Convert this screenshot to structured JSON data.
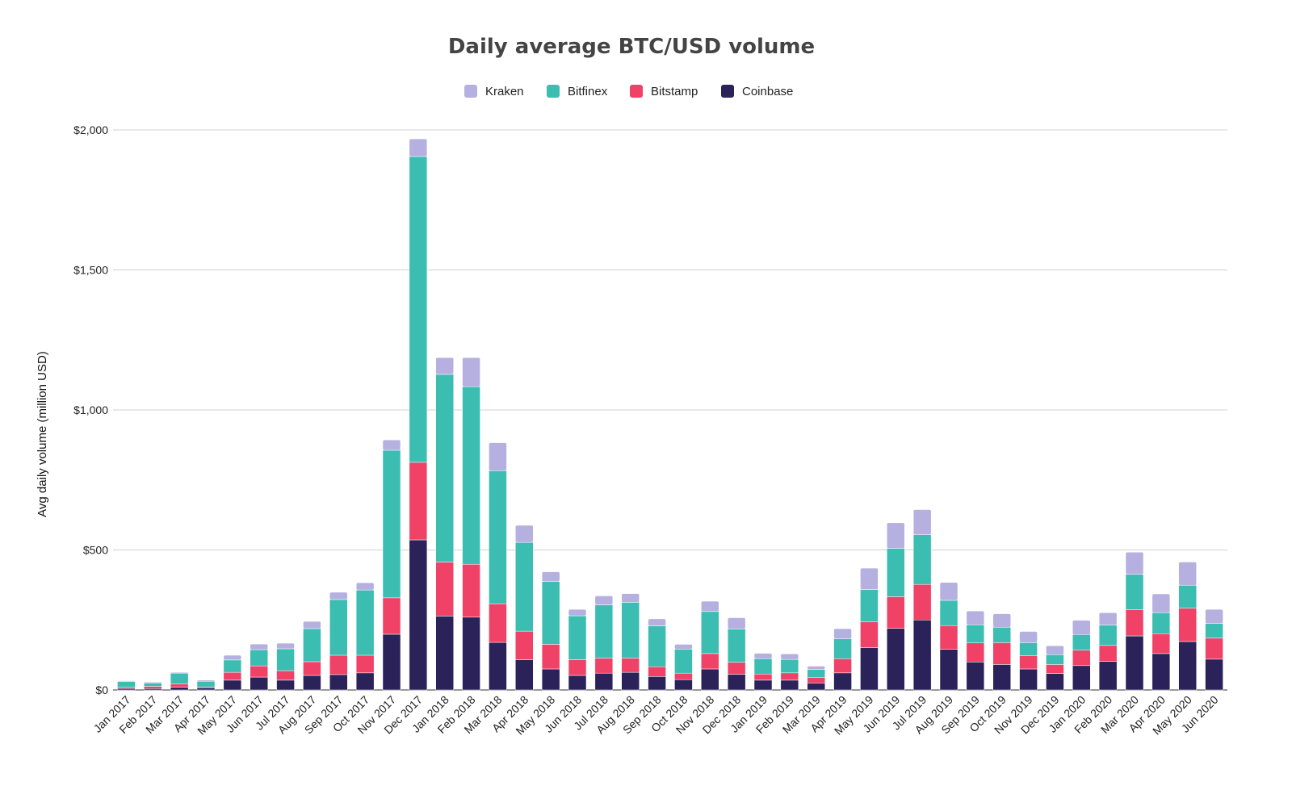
{
  "chart_data": {
    "type": "bar",
    "stacked": true,
    "title": "Daily average BTC/USD volume",
    "xlabel": "",
    "ylabel": "Avg daily volume (million USD)",
    "ylim": [
      0,
      2000
    ],
    "yticks": [
      0,
      500,
      1000,
      1500,
      2000
    ],
    "ytick_labels": [
      "$0",
      "$500",
      "$1,000",
      "$1,500",
      "$2,000"
    ],
    "grid": true,
    "legend_position": "top",
    "categories": [
      "Jan 2017",
      "Feb 2017",
      "Mar 2017",
      "Apr 2017",
      "May 2017",
      "Jun 2017",
      "Jul 2017",
      "Aug 2017",
      "Sep 2017",
      "Oct 2017",
      "Nov 2017",
      "Dec 2017",
      "Jan 2018",
      "Feb 2018",
      "Mar 2018",
      "Apr 2018",
      "May 2018",
      "Jun 2018",
      "Jul 2018",
      "Aug 2018",
      "Sep 2018",
      "Oct 2018",
      "Nov 2018",
      "Dec 2018",
      "Jan 2019",
      "Feb 2019",
      "Mar 2019",
      "Apr 2019",
      "May 2019",
      "Jun 2019",
      "Jul 2019",
      "Aug 2019",
      "Sep 2019",
      "Oct 2019",
      "Nov 2019",
      "Dec 2019",
      "Jan 2020",
      "Feb 2020",
      "Mar 2020",
      "Apr 2020",
      "May 2020",
      "Jun 2020"
    ],
    "series": [
      {
        "name": "Coinbase",
        "color": "#2a2259",
        "values": [
          5,
          5,
          10,
          8,
          35,
          46,
          35,
          52,
          55,
          61,
          199,
          536,
          264,
          260,
          170,
          108,
          75,
          52,
          60,
          63,
          48,
          37,
          75,
          56,
          35,
          35,
          25,
          61,
          151,
          220,
          250,
          145,
          100,
          91,
          75,
          59,
          87,
          102,
          193,
          130,
          173,
          110
        ]
      },
      {
        "name": "Bitstamp",
        "color": "#f04266",
        "values": [
          5,
          8,
          12,
          3,
          28,
          40,
          34,
          49,
          69,
          63,
          130,
          277,
          193,
          189,
          138,
          102,
          88,
          56,
          54,
          51,
          35,
          23,
          55,
          43,
          22,
          26,
          19,
          51,
          92,
          113,
          127,
          85,
          68,
          78,
          47,
          32,
          55,
          57,
          94,
          71,
          119,
          75
        ]
      },
      {
        "name": "Bitfinex",
        "color": "#3bbdb2",
        "values": [
          20,
          12,
          38,
          20,
          44,
          58,
          78,
          118,
          199,
          233,
          527,
          1092,
          670,
          634,
          475,
          317,
          224,
          157,
          190,
          199,
          146,
          86,
          150,
          119,
          55,
          48,
          29,
          71,
          116,
          173,
          177,
          90,
          65,
          55,
          47,
          35,
          56,
          73,
          126,
          75,
          82,
          52
        ]
      },
      {
        "name": "Kraken",
        "color": "#b5b0e0",
        "values": [
          3,
          3,
          3,
          4,
          17,
          20,
          20,
          26,
          26,
          26,
          37,
          63,
          60,
          104,
          100,
          61,
          35,
          23,
          32,
          31,
          25,
          17,
          37,
          40,
          19,
          20,
          12,
          36,
          76,
          91,
          90,
          64,
          49,
          48,
          40,
          32,
          51,
          44,
          79,
          67,
          83,
          51
        ]
      }
    ],
    "legend_order": [
      "Kraken",
      "Bitfinex",
      "Bitstamp",
      "Coinbase"
    ]
  }
}
